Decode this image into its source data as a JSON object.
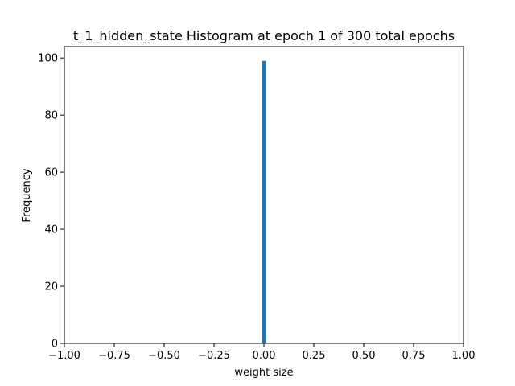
{
  "chart_data": {
    "type": "bar",
    "title": "t_1_hidden_state Histogram at epoch 1 of 300 total epochs",
    "xlabel": "weight size",
    "ylabel": "Frequency",
    "xlim": [
      -1.0,
      1.0
    ],
    "ylim": [
      0,
      104
    ],
    "x_ticks": [
      -1.0,
      -0.75,
      -0.5,
      -0.25,
      0.0,
      0.25,
      0.5,
      0.75,
      1.0
    ],
    "x_tick_labels": [
      "−1.00",
      "−0.75",
      "−0.50",
      "−0.25",
      "0.00",
      "0.25",
      "0.50",
      "0.75",
      "1.00"
    ],
    "y_ticks": [
      0,
      20,
      40,
      60,
      80,
      100
    ],
    "y_tick_labels": [
      "0",
      "20",
      "40",
      "60",
      "80",
      "100"
    ],
    "bars": [
      {
        "x_start": -0.01,
        "x_end": 0.01,
        "value": 99
      }
    ],
    "bar_color": "#1f77b4",
    "grid": false,
    "legend": "none"
  }
}
